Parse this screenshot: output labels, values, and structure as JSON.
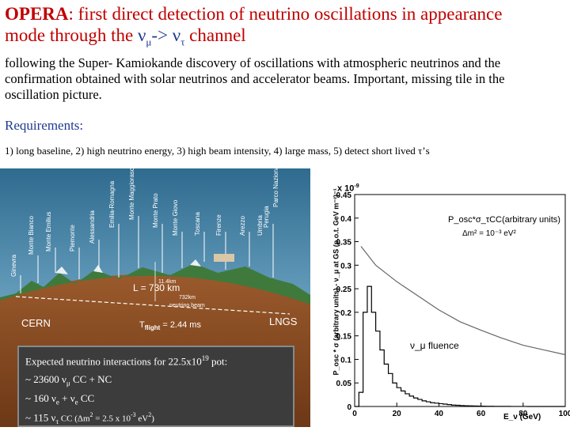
{
  "title": {
    "bold": "OPERA",
    "rest_1": ": first direct detection of neutrino oscillations in appearance",
    "rest_2": "mode through the ",
    "nu": "ν",
    "mu": "μ",
    "arrow": "-> ",
    "tau": "τ",
    "channel": " channel"
  },
  "intro": "following the Super- Kamiokande discovery of oscillations with atmospheric neutrinos and the confirmation obtained with solar neutrinos and accelerator beams. Important, missing tile in the oscillation picture.",
  "requirements": {
    "heading": "Requirements:",
    "text": "1) long baseline, 2) high neutrino energy, 3) high beam intensity, 4) large mass, 5) detect short lived τ’s"
  },
  "map": {
    "distance": "L = 730 km",
    "origin": "CERN",
    "destination": "LNGS",
    "flight_prefix": "T",
    "flight_sub": "flight",
    "flight_value": " = 2.44 ms",
    "depth_label": "11.4km",
    "chord_label": "732km",
    "beam_label": "neutrino beam",
    "region_labels": [
      "Ginevra",
      "Monte Bianco",
      "Monte Emilius",
      "Piemonte",
      "Alessandria",
      "Emilia-Romagna",
      "Monte Maggiorasca",
      "Monte Prato",
      "Monte Giovo",
      "Toscana",
      "Firenze",
      "Arezzo",
      "Umbria",
      "Perugia",
      "Parco Nazionale del Gran Sasso"
    ]
  },
  "expected": {
    "line1": "Expected neutrino interactions for 22.5x10",
    "line1_sup": "19",
    "line1_end": " pot:",
    "line2_a": "~ 23600 ν",
    "line2_sub": "μ",
    "line2_b": " CC + NC",
    "line3_a": "~ 160 ν",
    "line3_sub1": "e",
    "line3_b": " + ν",
    "line3_sub2": "e",
    "line3_c": " CC",
    "line4_a": "~ 115 ν",
    "line4_sub": "τ",
    "line4_b": " CC (Δm",
    "line4_sup": "2",
    "line4_c": " = 2.5 x 10",
    "line4_sup2": "-3",
    "line4_d": " eV",
    "line4_sup3": "2",
    "line4_e": ")"
  },
  "chart_data": {
    "type": "line",
    "multiplier": "x 10",
    "multiplier_exp": "-9",
    "ylim": [
      0,
      0.45
    ],
    "xlim": [
      0,
      100
    ],
    "yticks": [
      "0.45",
      "0.4",
      "0.35",
      "0.3",
      "0.25",
      "0.2",
      "0.15",
      "0.1",
      "0.05",
      "0"
    ],
    "xticks": [
      "0",
      "20",
      "40",
      "60",
      "80",
      "100"
    ],
    "ylabel": "P_osc * σ (arbitrary units) - ν_μ at GS (p.o.t. GeV m⁻²)⁻¹",
    "xlabel": "E_ν (GeV)",
    "annotation_posc": "P_osc*σ_τCC(arbitrary units)",
    "annotation_dm": "Δm² = 10⁻³ eV²",
    "annotation_fluence": "ν_μ fluence",
    "series": [
      {
        "name": "ν_μ fluence",
        "x": [
          0,
          2,
          4,
          6,
          8,
          10,
          12,
          14,
          16,
          18,
          20,
          22,
          24,
          26,
          28,
          30,
          32,
          34,
          36,
          38,
          40,
          42,
          44,
          46,
          48,
          50,
          52,
          54,
          56,
          58,
          60,
          62,
          64,
          66,
          68,
          70,
          72,
          74,
          76,
          78,
          80,
          82,
          84,
          86,
          88,
          90,
          92,
          94,
          96,
          98,
          100
        ],
        "values": [
          0,
          0.03,
          0.2,
          0.255,
          0.2,
          0.16,
          0.12,
          0.09,
          0.07,
          0.05,
          0.04,
          0.033,
          0.027,
          0.022,
          0.018,
          0.015,
          0.012,
          0.01,
          0.008,
          0.007,
          0.006,
          0.005,
          0.004,
          0.003,
          0.0025,
          0.002,
          0.0015,
          0.0012,
          0.001,
          0.0008,
          0.0006,
          0.0005,
          0.0004,
          0.0003,
          0.0002,
          0.0002,
          0.00015,
          0.0001,
          0.0001,
          0.0001,
          8e-05,
          6e-05,
          5e-05,
          4e-05,
          3e-05,
          2e-05,
          2e-05,
          1e-05,
          1e-05,
          0,
          0
        ]
      },
      {
        "name": "P_osc*σ_τCC(arbitrary units)",
        "x": [
          3,
          10,
          20,
          30,
          40,
          50,
          60,
          70,
          80,
          90,
          100
        ],
        "values": [
          0.34,
          0.3,
          0.265,
          0.235,
          0.205,
          0.18,
          0.162,
          0.145,
          0.13,
          0.12,
          0.11
        ]
      }
    ]
  }
}
